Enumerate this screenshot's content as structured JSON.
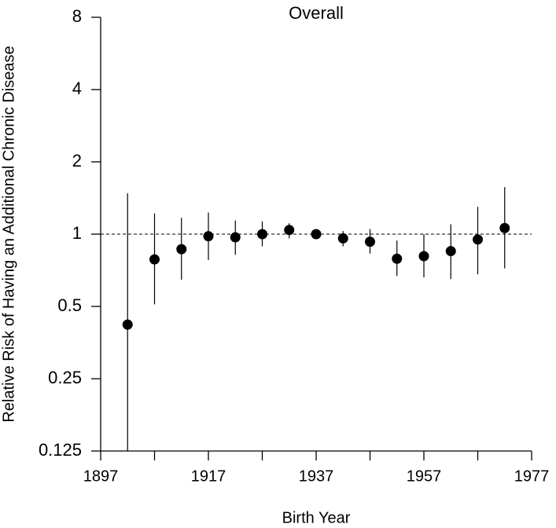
{
  "chart_data": {
    "type": "errorbar",
    "title": "Overall",
    "x_label": "Birth Year",
    "y_label": "Relative Risk of Having an Additional Chronic Disease",
    "x": [
      1902,
      1907,
      1912,
      1917,
      1922,
      1927,
      1932,
      1937,
      1942,
      1947,
      1952,
      1957,
      1962,
      1967,
      1972
    ],
    "values": [
      0.42,
      0.785,
      0.866,
      0.98,
      0.97,
      1.0,
      1.04,
      1.0,
      0.96,
      0.93,
      0.79,
      0.81,
      0.85,
      0.95,
      1.06
    ],
    "lower": [
      0.12,
      0.51,
      0.646,
      0.78,
      0.82,
      0.89,
      0.96,
      null,
      0.89,
      0.83,
      0.67,
      0.66,
      0.65,
      0.68,
      0.72
    ],
    "upper": [
      1.48,
      1.22,
      1.17,
      1.23,
      1.14,
      1.13,
      1.11,
      null,
      1.03,
      1.05,
      0.94,
      1.0,
      1.1,
      1.3,
      1.57
    ],
    "color": "#000000",
    "xlim": [
      1897,
      1977
    ],
    "xticks": [
      1897,
      1917,
      1937,
      1957,
      1977
    ],
    "xminorticks": [
      1907,
      1927,
      1947,
      1967
    ],
    "ylim": [
      0.125,
      8
    ],
    "yticks": [
      0.125,
      0.25,
      0.5,
      1,
      2,
      4,
      8
    ],
    "ylog": true,
    "reference_line": 1
  }
}
